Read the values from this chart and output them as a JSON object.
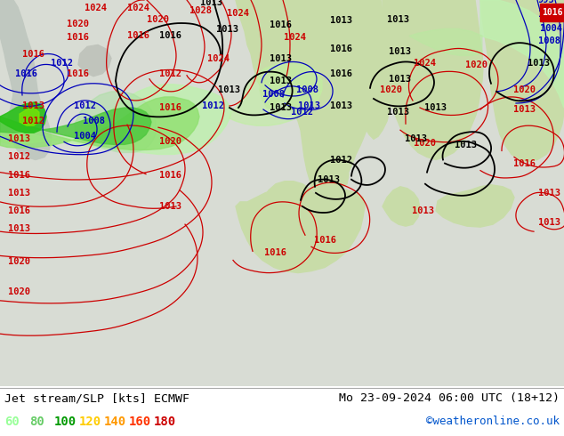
{
  "title_left": "Jet stream/SLP [kts] ECMWF",
  "title_right": "Mo 23-09-2024 06:00 UTC (18+12)",
  "credit": "©weatheronline.co.uk",
  "legend_values": [
    "60",
    "80",
    "100",
    "120",
    "140",
    "160",
    "180"
  ],
  "legend_colors": [
    "#99ff99",
    "#66cc66",
    "#009900",
    "#ffcc00",
    "#ff9900",
    "#ff3300",
    "#cc0000"
  ],
  "bg_color": "#d8d8d8",
  "land_color": "#c8e8b0",
  "sea_color": "#e0e8e0",
  "ocean_color": "#d0dcd0",
  "jet_light_green": "#b4e8a0",
  "jet_mid_green": "#78cc60",
  "jet_dark_green": "#30a830",
  "jet_bright_green": "#00cc00",
  "jet_yellow_green": "#ccee00",
  "jet_orange": "#ff8800",
  "jet_red": "#ff2200",
  "isobar_red": "#cc0000",
  "isobar_blue": "#0000bb",
  "isobar_black": "#000000",
  "figsize": [
    6.34,
    4.9
  ],
  "dpi": 100,
  "box_1016_color": "#cc0000",
  "box_1016_text": "1016"
}
